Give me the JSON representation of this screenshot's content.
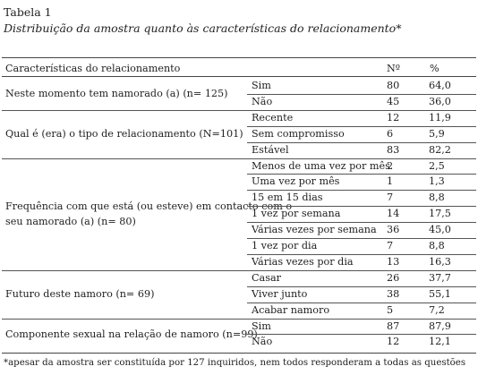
{
  "caption": {
    "label": "Tabela 1",
    "title": "Distribuição da amostra quanto às características do relacionamento*"
  },
  "table": {
    "headers": [
      "Características do relacionamento",
      "Nº",
      "%"
    ],
    "groups": [
      {
        "label_lines": [
          "Neste momento tem namorado (a) (n= 125)"
        ],
        "rows": [
          {
            "category": "Sim",
            "n": "80",
            "pct": "64,0"
          },
          {
            "category": "Não",
            "n": "45",
            "pct": "36,0"
          }
        ]
      },
      {
        "label_lines": [
          "Qual é (era) o tipo de relacionamento (N=101)"
        ],
        "rows": [
          {
            "category": "Recente",
            "n": "12",
            "pct": "11,9"
          },
          {
            "category": "Sem compromisso",
            "n": "6",
            "pct": "5,9"
          },
          {
            "category": "Estável",
            "n": "83",
            "pct": "82,2"
          }
        ]
      },
      {
        "label_lines": [
          "Frequência com que está (ou esteve) em contacto com o",
          "seu namorado (a) (n= 80)"
        ],
        "rows": [
          {
            "category": "Menos de uma vez por mês",
            "n": "2",
            "pct": "2,5"
          },
          {
            "category": "Uma vez por mês",
            "n": "1",
            "pct": "1,3"
          },
          {
            "category": "15 em 15 dias",
            "n": "7",
            "pct": "8,8"
          },
          {
            "category": "1 vez por semana",
            "n": "14",
            "pct": "17,5"
          },
          {
            "category": "Várias vezes por semana",
            "n": "36",
            "pct": "45,0"
          },
          {
            "category": "1 vez por dia",
            "n": "7",
            "pct": "8,8"
          },
          {
            "category": "Várias vezes por dia",
            "n": "13",
            "pct": "16,3"
          }
        ]
      },
      {
        "label_lines": [
          "Futuro deste namoro (n= 69)"
        ],
        "rows": [
          {
            "category": "Casar",
            "n": "26",
            "pct": "37,7"
          },
          {
            "category": "Viver junto",
            "n": "38",
            "pct": "55,1"
          },
          {
            "category": "Acabar namoro",
            "n": "5",
            "pct": "7,2"
          }
        ]
      },
      {
        "label_lines": [
          "Componente sexual na relação de namoro (n=99)"
        ],
        "rows": [
          {
            "category": "Sim",
            "n": "87",
            "pct": "87,9"
          },
          {
            "category": "Não",
            "n": "12",
            "pct": "12,1"
          }
        ]
      }
    ]
  },
  "footnote": "*apesar da amostra ser constituída por 127 inquiridos, nem todos responderam a todas as questões"
}
